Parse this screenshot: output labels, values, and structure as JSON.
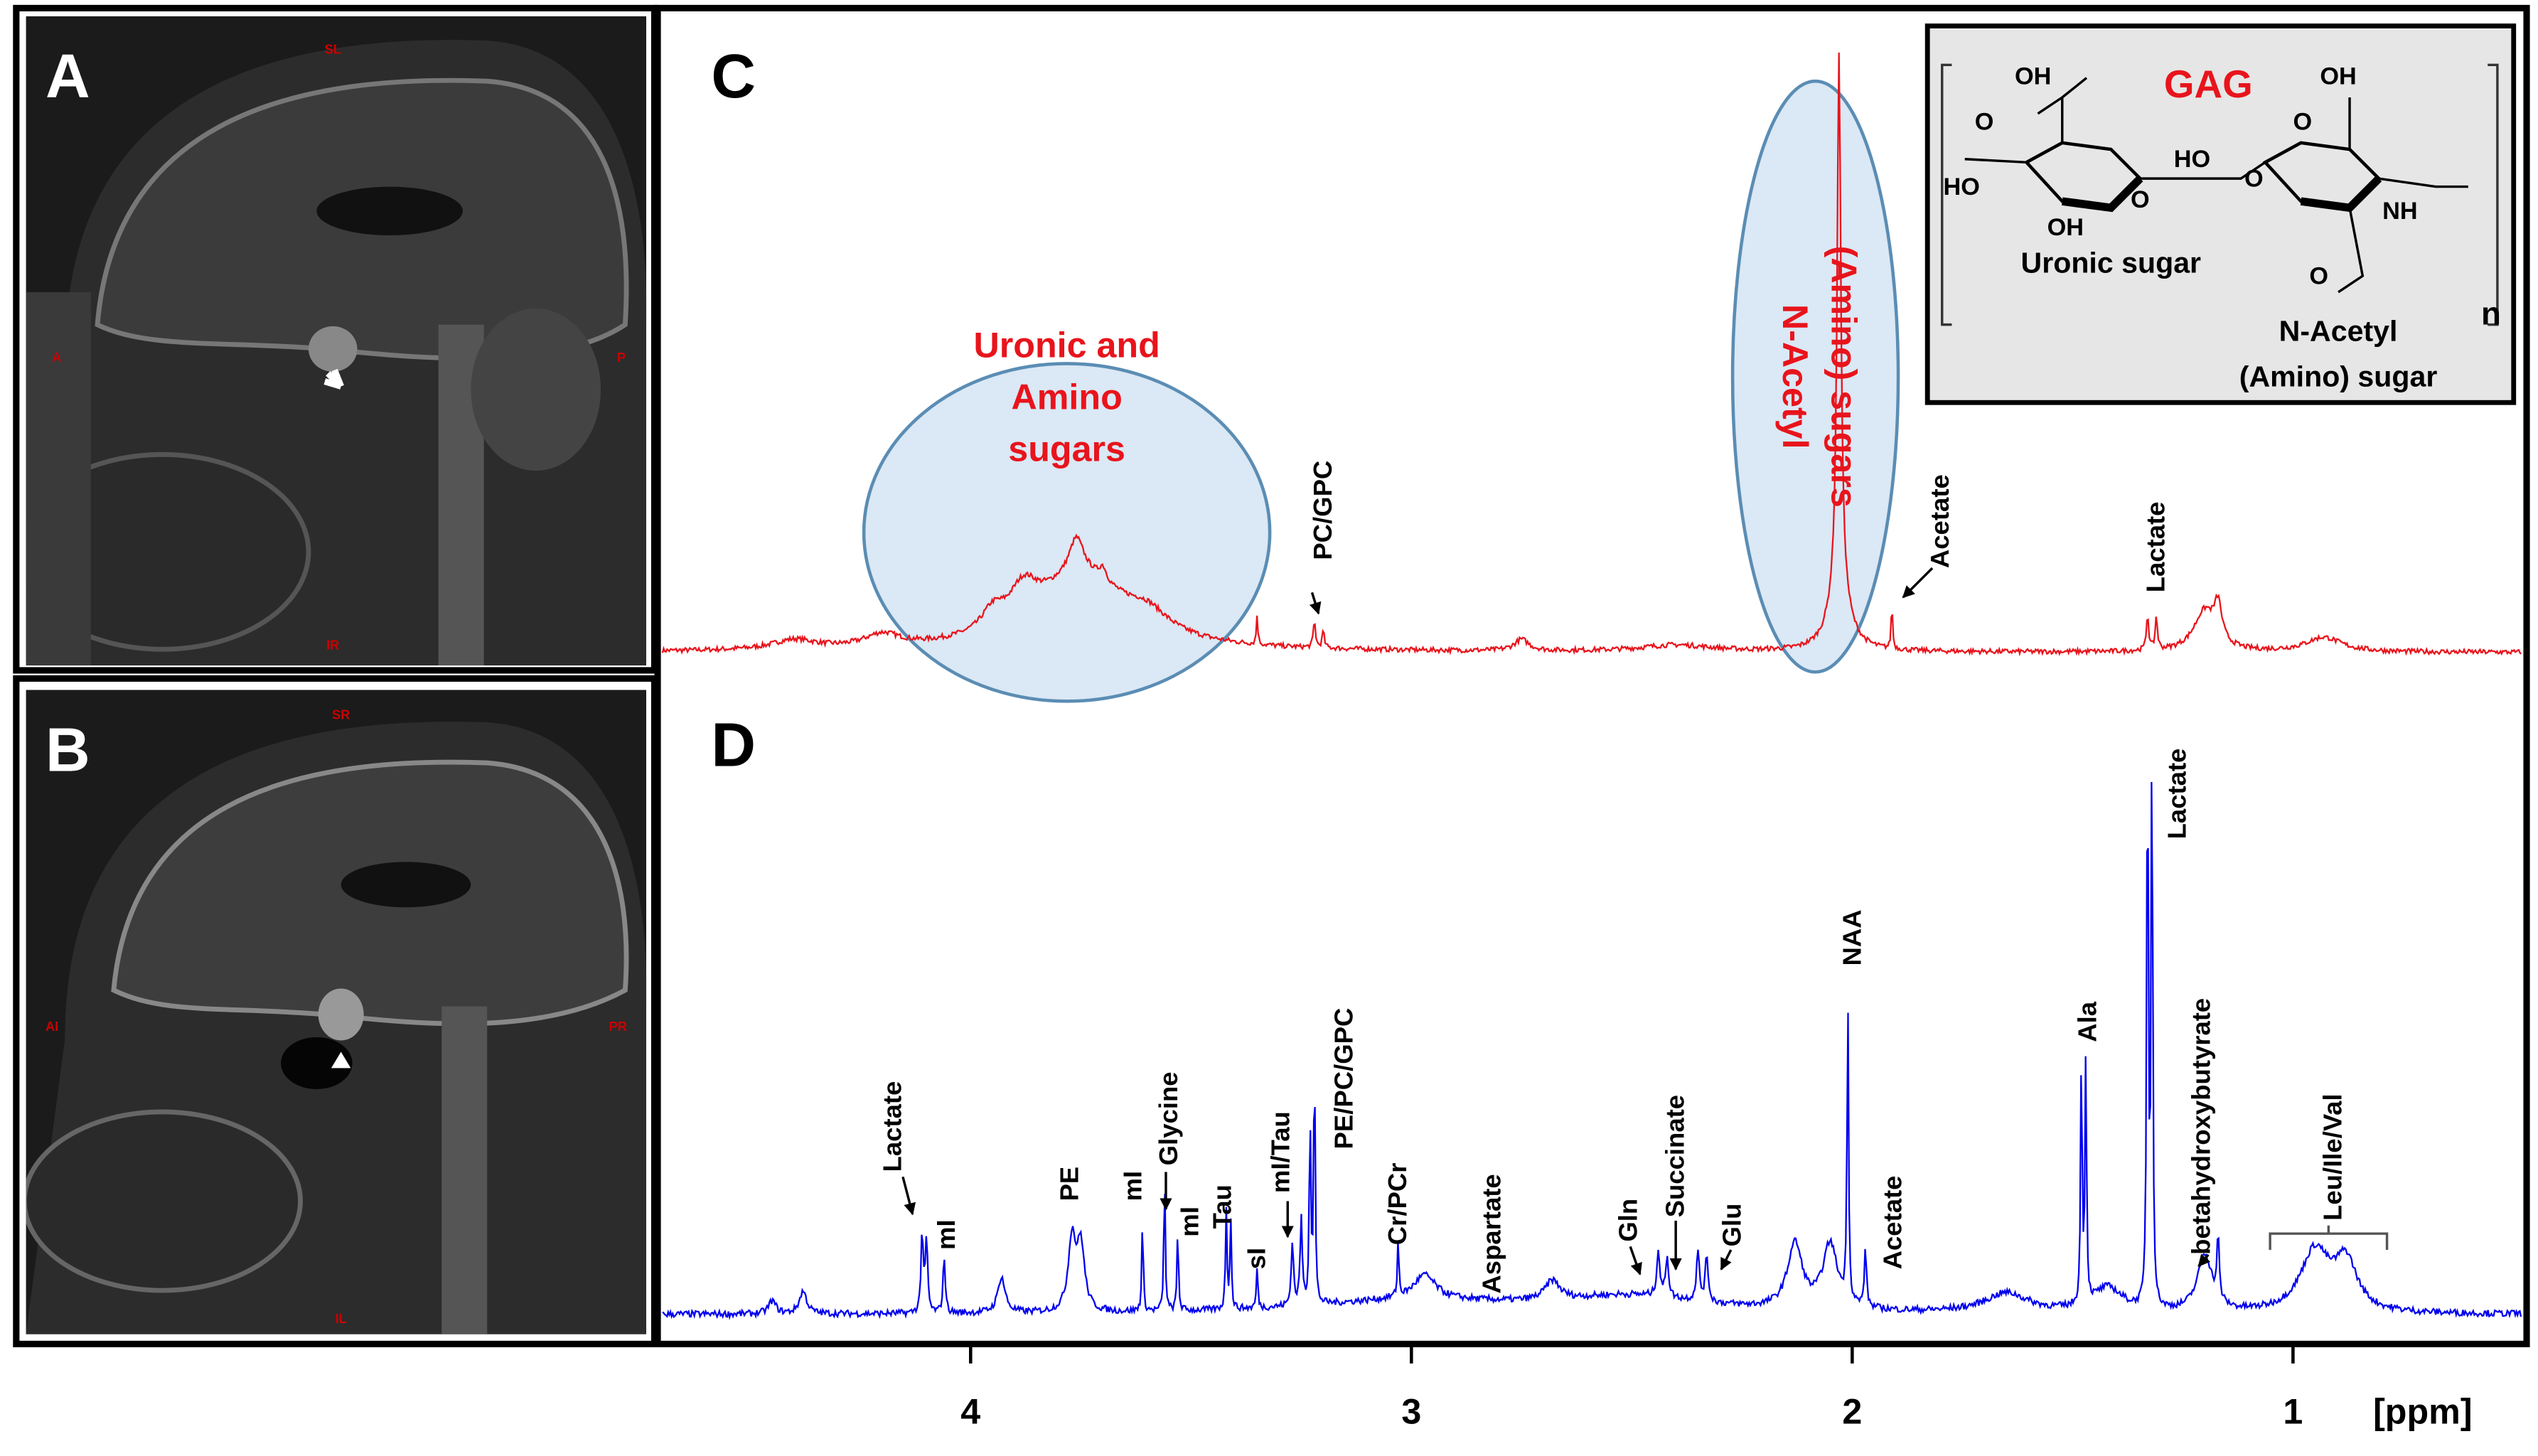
{
  "panel_a": {
    "label": "A",
    "orientation": [
      "SL",
      "A",
      "P",
      "IR"
    ]
  },
  "panel_b": {
    "label": "B",
    "orientation": [
      "SR",
      "AI",
      "PR",
      "IL"
    ]
  },
  "panel_c": {
    "label": "C",
    "circle_label": [
      "Uronic and",
      "Amino",
      "sugars"
    ],
    "ellipse_label": [
      "N-Acetyl",
      "(Amino) sugars"
    ],
    "annotations": [
      "PC/GPC",
      "Acetate",
      "Lactate"
    ],
    "inset": {
      "title": "GAG",
      "uronic": "Uronic sugar",
      "amino": [
        "N-Acetyl",
        "(Amino) sugar"
      ],
      "repeat": "n",
      "atoms": [
        "OH",
        "O",
        "HO",
        "OH",
        "O",
        "HO",
        "O",
        "OH",
        "O",
        "NH",
        "O"
      ]
    }
  },
  "panel_d": {
    "label": "D",
    "annotations": [
      "Lactate",
      "mI",
      "PE",
      "mI",
      "Glycine",
      "mI",
      "Tau",
      "sI",
      "mI/Tau",
      "PE/PC/GPC",
      "Cr/PCr",
      "Aspartate",
      "Gln",
      "Succinate",
      "Glu",
      "NAA",
      "Acetate",
      "Ala",
      "Lactate",
      "betahydroxybutyrate",
      "Leu/Ile/Val"
    ]
  },
  "axis": {
    "xlim": [
      4.71,
      0.47
    ],
    "xticks": [
      4,
      3,
      2,
      1
    ],
    "unit": "[ppm]"
  }
}
